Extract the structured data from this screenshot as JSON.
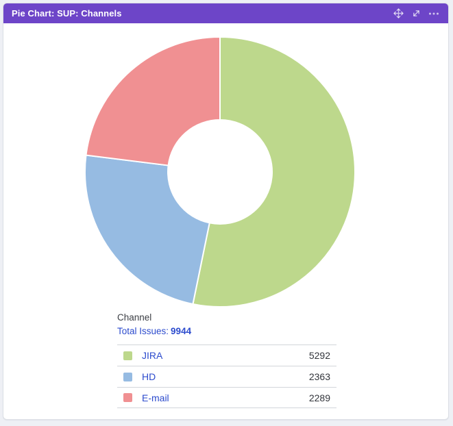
{
  "page": {
    "background_color": "#eef0f5"
  },
  "gadget": {
    "title": "Pie Chart: SUP: Channels",
    "header_color": "#6d45c8",
    "controls": [
      {
        "name": "move",
        "icon": "move-icon"
      },
      {
        "name": "expand",
        "icon": "expand-icon"
      },
      {
        "name": "more",
        "icon": "ellipsis-icon"
      }
    ],
    "summary": {
      "dimension_label": "Channel",
      "total_label": "Total Issues:",
      "total_value": "9944"
    },
    "legend": {
      "rows": [
        {
          "label": "JIRA",
          "value": "5292",
          "color": "#bdd88c"
        },
        {
          "label": "HD",
          "value": "2363",
          "color": "#96bbe2"
        },
        {
          "label": "E-mail",
          "value": "2289",
          "color": "#f09092"
        }
      ]
    }
  },
  "chart_data": {
    "type": "pie",
    "title": "Pie Chart: SUP: Channels",
    "donut": true,
    "inner_radius_ratio": 0.385,
    "start_angle_deg": -90,
    "direction": "clockwise",
    "categories": [
      "JIRA",
      "HD",
      "E-mail"
    ],
    "values": [
      5292,
      2363,
      2289
    ],
    "colors": [
      "#bdd88c",
      "#96bbe2",
      "#f09092"
    ],
    "total": 9944,
    "legend_position": "bottom",
    "slice_border_color": "#ffffff"
  },
  "colors": {
    "link_blue": "#2c4bcd",
    "text_dark": "#32353b",
    "divider": "#d2d5da",
    "card_border": "#dcdfe5"
  }
}
